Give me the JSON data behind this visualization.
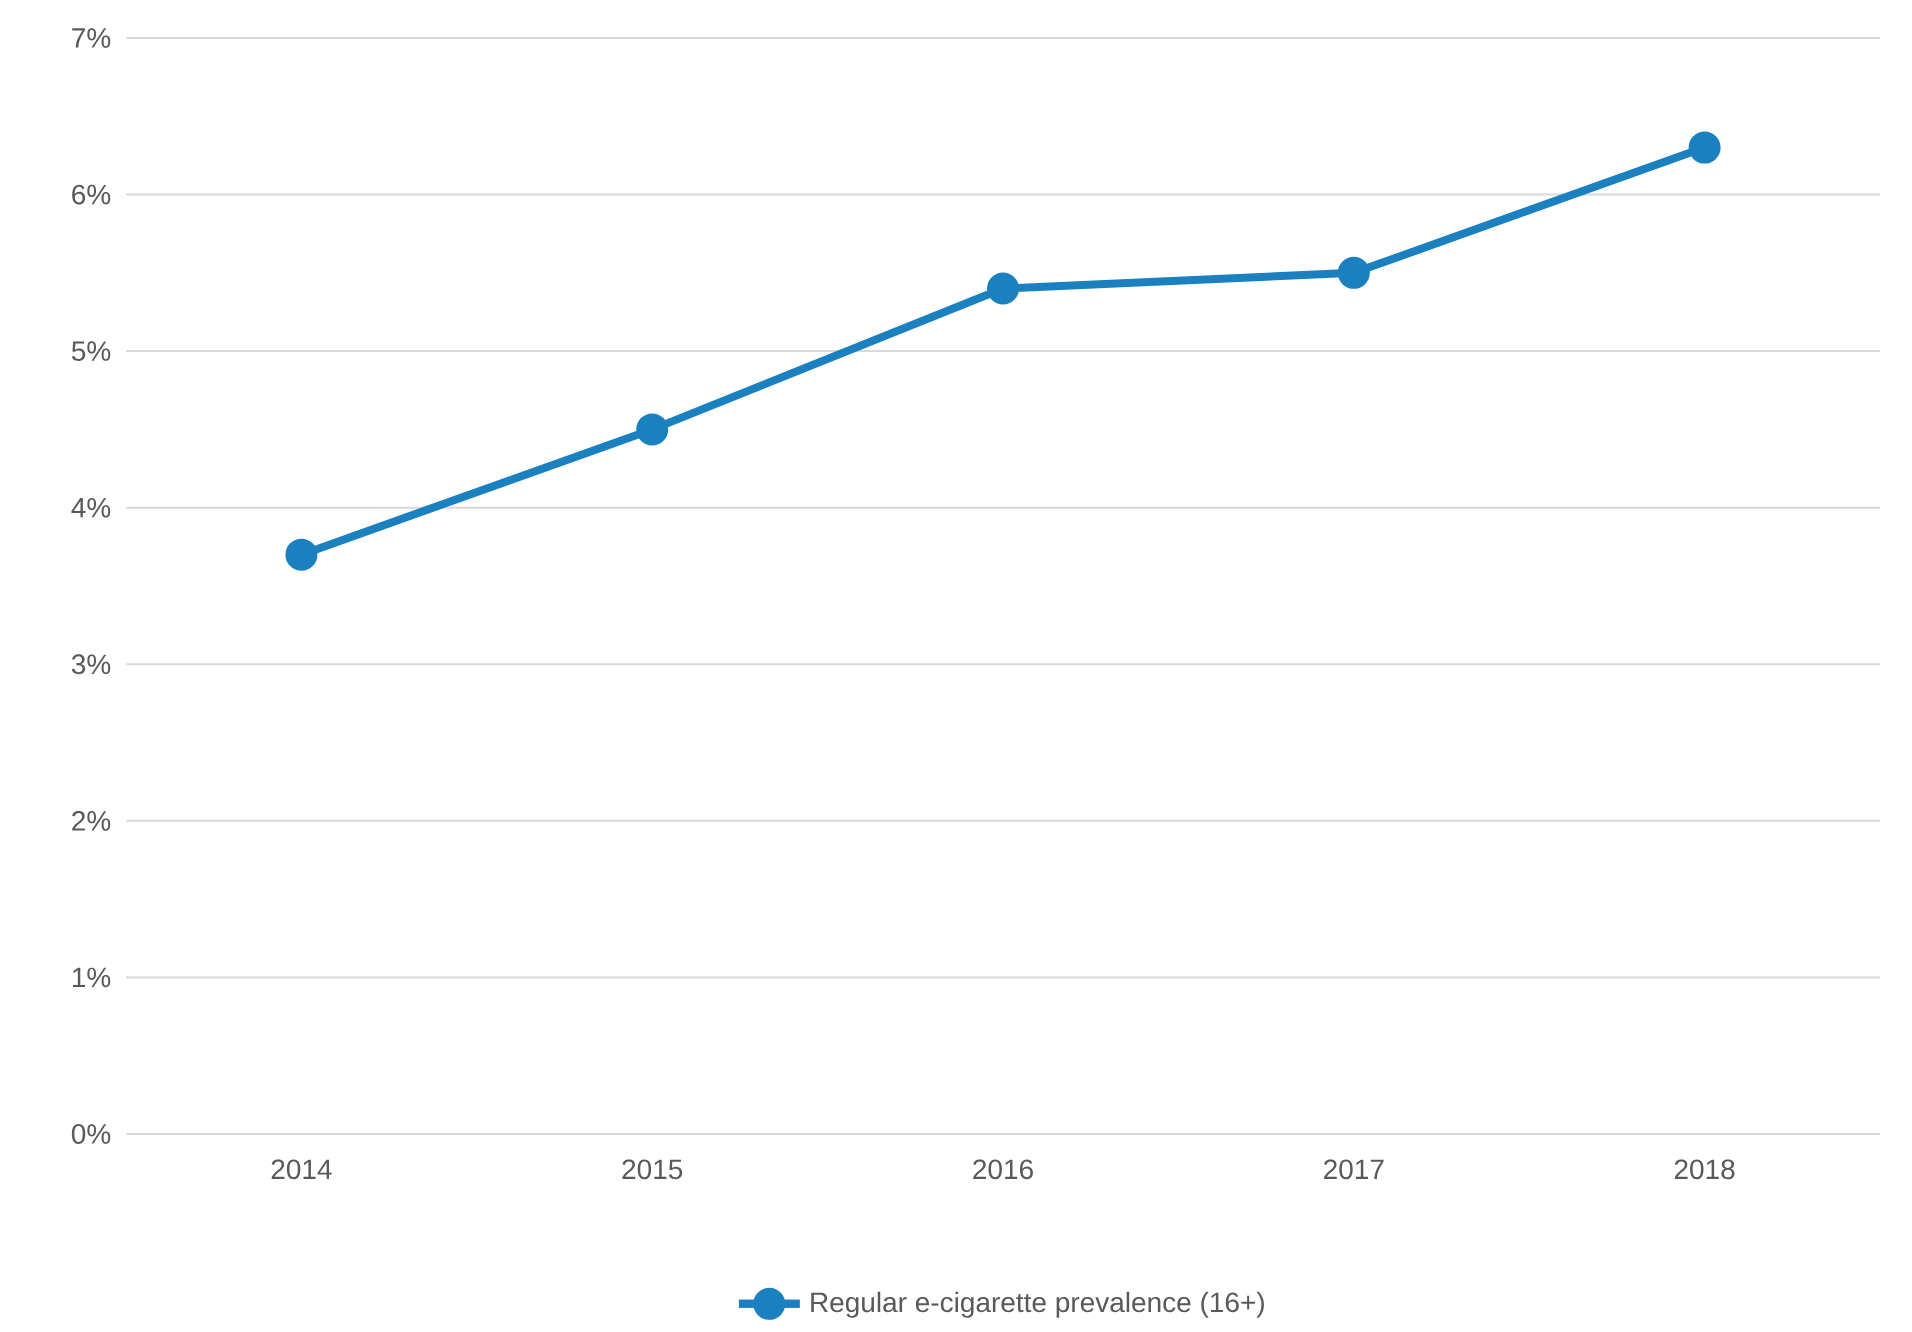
{
  "chart_data": {
    "type": "line",
    "categories": [
      "2014",
      "2015",
      "2016",
      "2017",
      "2018"
    ],
    "series": [
      {
        "name": "Regular e-cigarette prevalence (16+)",
        "color": "#1b80c0",
        "values": [
          3.7,
          4.5,
          5.4,
          5.5,
          6.3
        ]
      }
    ],
    "ylim": [
      0,
      7
    ],
    "yticks": [
      {
        "value": 0,
        "label": "0%"
      },
      {
        "value": 1,
        "label": "1%"
      },
      {
        "value": 2,
        "label": "2%"
      },
      {
        "value": 3,
        "label": "3%"
      },
      {
        "value": 4,
        "label": "4%"
      },
      {
        "value": 5,
        "label": "5%"
      },
      {
        "value": 6,
        "label": "6%"
      },
      {
        "value": 7,
        "label": "7%"
      }
    ],
    "grid": "y",
    "legend": "bottom",
    "marker": "circle",
    "line_style": "solid"
  }
}
